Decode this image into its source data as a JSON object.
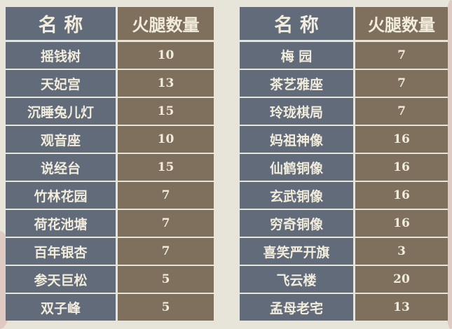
{
  "left_table": {
    "header": {
      "name": "名 称",
      "count": "火腿数量"
    },
    "rows": [
      {
        "name": "摇钱树",
        "count": "10"
      },
      {
        "name": "天妃宫",
        "count": "13"
      },
      {
        "name": "沉睡兔儿灯",
        "count": "15"
      },
      {
        "name": "观音座",
        "count": "10"
      },
      {
        "name": "说经台",
        "count": "15"
      },
      {
        "name": "竹林花园",
        "count": "7"
      },
      {
        "name": "荷花池塘",
        "count": "7"
      },
      {
        "name": "百年银杏",
        "count": "7"
      },
      {
        "name": "参天巨松",
        "count": "5"
      },
      {
        "name": "双子峰",
        "count": "5"
      }
    ]
  },
  "right_table": {
    "header": {
      "name": "名 称",
      "count": "火腿数量"
    },
    "rows": [
      {
        "name": "梅  园",
        "count": "7"
      },
      {
        "name": "茶艺雅座",
        "count": "7"
      },
      {
        "name": "玲珑棋局",
        "count": "7"
      },
      {
        "name": "妈祖神像",
        "count": "16"
      },
      {
        "name": "仙鹤铜像",
        "count": "16"
      },
      {
        "name": "玄武铜像",
        "count": "16"
      },
      {
        "name": "穷奇铜像",
        "count": "16"
      },
      {
        "name": "喜笑严开旗",
        "count": "3"
      },
      {
        "name": "飞云楼",
        "count": "20"
      },
      {
        "name": "孟母老宅",
        "count": "13"
      }
    ]
  }
}
